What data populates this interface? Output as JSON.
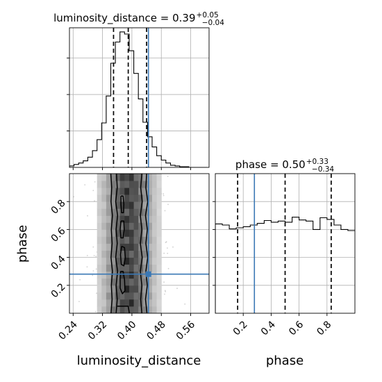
{
  "chart_data": [
    {
      "type": "histogram",
      "panel": "luminosity_distance-marginal",
      "title": {
        "prefix": "luminosity_distance = 0.39",
        "sup": "+0.05",
        "sub": "−0.04"
      },
      "xlim": [
        0.23,
        0.61
      ],
      "bins": [
        0.23,
        0.2425,
        0.255,
        0.2675,
        0.28,
        0.2925,
        0.305,
        0.3175,
        0.33,
        0.3425,
        0.355,
        0.3675,
        0.38,
        0.3925,
        0.405,
        0.4175,
        0.43,
        0.4425,
        0.455,
        0.4675,
        0.48,
        0.4925,
        0.505,
        0.5175,
        0.53,
        0.5425,
        0.555,
        0.5675,
        0.58,
        0.5925,
        0.605
      ],
      "counts": [
        2,
        4,
        6,
        9,
        14,
        23,
        38,
        61,
        98,
        143,
        172,
        186,
        183,
        160,
        129,
        94,
        62,
        42,
        28,
        16,
        10,
        6,
        3,
        2,
        1,
        1,
        0,
        0,
        0,
        0
      ],
      "quantiles": [
        0.35,
        0.39,
        0.44
      ],
      "truth": 0.445,
      "grid": true
    },
    {
      "type": "histogram",
      "panel": "phase-marginal",
      "title": {
        "prefix": "phase = 0.50",
        "sup": "+0.33",
        "sub": "−0.34"
      },
      "xlim": [
        0.0,
        1.0
      ],
      "bins": [
        0.0,
        0.05,
        0.1,
        0.15,
        0.2,
        0.25,
        0.3,
        0.35,
        0.4,
        0.45,
        0.5,
        0.55,
        0.6,
        0.65,
        0.7,
        0.75,
        0.8,
        0.85,
        0.9,
        0.95,
        1.0
      ],
      "counts": [
        160,
        158,
        151,
        153,
        155,
        158,
        161,
        166,
        163,
        165,
        163,
        172,
        167,
        165,
        150,
        171,
        168,
        158,
        150,
        148
      ],
      "quantiles": [
        0.16,
        0.5,
        0.83
      ],
      "truth": 0.28,
      "x_ticks": [
        "0.2",
        "0.4",
        "0.6",
        "0.8"
      ],
      "xlabel": "phase",
      "grid": true
    },
    {
      "type": "heatmap",
      "panel": "2d-corner",
      "xlim": [
        0.23,
        0.61
      ],
      "ylim": [
        0.0,
        1.0
      ],
      "x_ticks": [
        "0.24",
        "0.32",
        "0.40",
        "0.48",
        "0.56"
      ],
      "y_ticks": [
        "0.2",
        "0.4",
        "0.6",
        "0.8"
      ],
      "xlabel": "luminosity_distance",
      "ylabel": "phase",
      "truth": {
        "x": 0.445,
        "y": 0.28
      },
      "density_profile_x": [
        0.305,
        0.3175,
        0.33,
        0.3425,
        0.355,
        0.3675,
        0.38,
        0.3925,
        0.405,
        0.4175,
        0.43,
        0.4425,
        0.455,
        0.4675
      ],
      "density_profile_w": [
        0.18,
        0.28,
        0.45,
        0.62,
        0.78,
        0.9,
        1.0,
        0.98,
        0.88,
        0.72,
        0.55,
        0.38,
        0.24,
        0.14
      ],
      "contours": [
        {
          "level": "outer",
          "segments": [
            [
              [
                0.3425,
                1.0
              ],
              [
                0.345,
                0.9
              ],
              [
                0.343,
                0.8
              ],
              [
                0.347,
                0.7
              ],
              [
                0.344,
                0.6
              ],
              [
                0.346,
                0.5
              ],
              [
                0.343,
                0.4
              ],
              [
                0.347,
                0.3
              ],
              [
                0.344,
                0.2
              ],
              [
                0.346,
                0.1
              ],
              [
                0.343,
                0.0
              ]
            ],
            [
              [
                0.44,
                1.0
              ],
              [
                0.438,
                0.9
              ],
              [
                0.443,
                0.8
              ],
              [
                0.437,
                0.7
              ],
              [
                0.442,
                0.6
              ],
              [
                0.438,
                0.5
              ],
              [
                0.443,
                0.4
              ],
              [
                0.438,
                0.3
              ],
              [
                0.442,
                0.2
              ],
              [
                0.437,
                0.1
              ],
              [
                0.441,
                0.0
              ]
            ]
          ]
        },
        {
          "level": "mid",
          "segments": [
            [
              [
                0.358,
                1.0
              ],
              [
                0.36,
                0.9
              ],
              [
                0.356,
                0.8
              ],
              [
                0.361,
                0.7
              ],
              [
                0.357,
                0.6
              ],
              [
                0.36,
                0.5
              ],
              [
                0.356,
                0.4
              ],
              [
                0.361,
                0.3
              ],
              [
                0.357,
                0.2
              ],
              [
                0.36,
                0.1
              ],
              [
                0.357,
                0.0
              ]
            ],
            [
              [
                0.427,
                1.0
              ],
              [
                0.424,
                0.9
              ],
              [
                0.428,
                0.8
              ],
              [
                0.423,
                0.7
              ],
              [
                0.427,
                0.6
              ],
              [
                0.423,
                0.5
              ],
              [
                0.428,
                0.4
              ],
              [
                0.423,
                0.3
              ],
              [
                0.427,
                0.2
              ],
              [
                0.424,
                0.1
              ],
              [
                0.427,
                0.0
              ]
            ]
          ]
        },
        {
          "level": "inner",
          "segments": [
            [
              [
                0.37,
                0.84
              ],
              [
                0.376,
                0.84
              ],
              [
                0.378,
                0.78
              ],
              [
                0.377,
                0.72
              ],
              [
                0.372,
                0.72
              ],
              [
                0.37,
                0.78
              ],
              [
                0.37,
                0.84
              ]
            ],
            [
              [
                0.37,
                0.66
              ],
              [
                0.378,
                0.66
              ],
              [
                0.379,
                0.6
              ],
              [
                0.376,
                0.54
              ],
              [
                0.37,
                0.54
              ],
              [
                0.368,
                0.6
              ],
              [
                0.37,
                0.66
              ]
            ],
            [
              [
                0.372,
                0.48
              ],
              [
                0.38,
                0.47
              ],
              [
                0.382,
                0.4
              ],
              [
                0.378,
                0.34
              ],
              [
                0.371,
                0.35
              ],
              [
                0.369,
                0.42
              ],
              [
                0.372,
                0.48
              ]
            ],
            [
              [
                0.369,
                0.3
              ],
              [
                0.376,
                0.3
              ],
              [
                0.38,
                0.24
              ],
              [
                0.381,
                0.16
              ],
              [
                0.374,
                0.14
              ],
              [
                0.368,
                0.18
              ],
              [
                0.368,
                0.25
              ],
              [
                0.369,
                0.3
              ]
            ],
            [
              [
                0.36,
                0.05
              ],
              [
                0.39,
                0.05
              ],
              [
                0.393,
                0.0
              ]
            ]
          ]
        }
      ],
      "grid": true
    }
  ]
}
